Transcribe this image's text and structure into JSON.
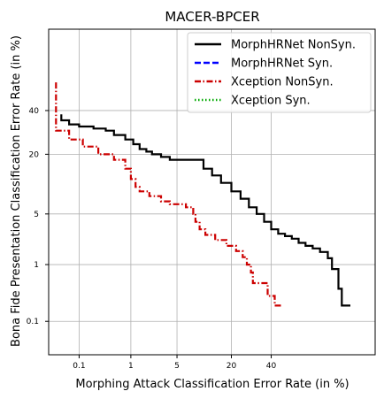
{
  "chart_data": {
    "type": "line",
    "title": "MACER-BPCER",
    "xlabel": "Morphing Attack Classification Error Rate (in %)",
    "ylabel": "Bona Fide Presentation Classification Error Rate (in %)",
    "scale": "probit",
    "xlim": [
      0.02,
      90
    ],
    "ylim": [
      0.02,
      80
    ],
    "xticks": [
      0.1,
      1,
      5,
      20,
      40
    ],
    "xtick_labels": [
      "0.1",
      "1",
      "5",
      "20",
      "40"
    ],
    "yticks": [
      0.1,
      1,
      5,
      20,
      40
    ],
    "ytick_labels": [
      "0.1",
      "1",
      "5",
      "20",
      "40"
    ],
    "grid": true,
    "legend_position": "top-right",
    "series": [
      {
        "name": "MorphHRNet NonSyn.",
        "color": "#000000",
        "style": "solid",
        "points": [
          [
            0.04,
            38
          ],
          [
            0.04,
            35
          ],
          [
            0.06,
            35
          ],
          [
            0.06,
            33
          ],
          [
            0.1,
            33
          ],
          [
            0.1,
            32
          ],
          [
            0.2,
            32
          ],
          [
            0.2,
            31
          ],
          [
            0.35,
            31
          ],
          [
            0.35,
            30
          ],
          [
            0.5,
            30
          ],
          [
            0.5,
            28
          ],
          [
            0.8,
            28
          ],
          [
            0.8,
            26
          ],
          [
            1.1,
            26
          ],
          [
            1.1,
            24
          ],
          [
            1.4,
            24
          ],
          [
            1.4,
            22
          ],
          [
            1.8,
            22
          ],
          [
            1.8,
            21
          ],
          [
            2.2,
            21
          ],
          [
            2.2,
            20
          ],
          [
            3.0,
            20
          ],
          [
            3.0,
            19
          ],
          [
            4.0,
            19
          ],
          [
            4.0,
            18
          ],
          [
            10.5,
            18
          ],
          [
            10.5,
            15
          ],
          [
            13,
            15
          ],
          [
            13,
            13
          ],
          [
            16,
            13
          ],
          [
            16,
            11
          ],
          [
            20,
            11
          ],
          [
            20,
            9
          ],
          [
            24,
            9
          ],
          [
            24,
            7.5
          ],
          [
            28,
            7.5
          ],
          [
            28,
            6
          ],
          [
            32,
            6
          ],
          [
            32,
            5
          ],
          [
            36,
            5
          ],
          [
            36,
            4
          ],
          [
            40,
            4
          ],
          [
            40,
            3.2
          ],
          [
            44,
            3.2
          ],
          [
            44,
            2.8
          ],
          [
            48,
            2.8
          ],
          [
            48,
            2.6
          ],
          [
            52,
            2.6
          ],
          [
            52,
            2.4
          ],
          [
            56,
            2.4
          ],
          [
            56,
            2.1
          ],
          [
            60,
            2.1
          ],
          [
            60,
            1.9
          ],
          [
            64,
            1.9
          ],
          [
            64,
            1.75
          ],
          [
            68,
            1.75
          ],
          [
            68,
            1.55
          ],
          [
            72,
            1.55
          ],
          [
            72,
            1.25
          ],
          [
            74,
            1.25
          ],
          [
            74,
            0.85
          ],
          [
            77,
            0.85
          ],
          [
            77,
            0.4
          ],
          [
            78.5,
            0.4
          ],
          [
            78.5,
            0.2
          ],
          [
            82,
            0.2
          ]
        ]
      },
      {
        "name": "MorphHRNet Syn.",
        "color": "#0000ff",
        "style": "dashed",
        "points": []
      },
      {
        "name": "Xception NonSyn.",
        "color": "#cc0000",
        "style": "dashdot",
        "points": [
          [
            0.03,
            55
          ],
          [
            0.03,
            30
          ],
          [
            0.06,
            30
          ],
          [
            0.06,
            26
          ],
          [
            0.12,
            26
          ],
          [
            0.12,
            23
          ],
          [
            0.25,
            23
          ],
          [
            0.25,
            20
          ],
          [
            0.5,
            20
          ],
          [
            0.5,
            18
          ],
          [
            0.8,
            18
          ],
          [
            0.8,
            15
          ],
          [
            1.0,
            15
          ],
          [
            1.0,
            12
          ],
          [
            1.2,
            12
          ],
          [
            1.2,
            10
          ],
          [
            1.4,
            10
          ],
          [
            1.4,
            9
          ],
          [
            2.0,
            9
          ],
          [
            2.0,
            8
          ],
          [
            3.0,
            8
          ],
          [
            3.0,
            7
          ],
          [
            4.0,
            7
          ],
          [
            4.0,
            6.5
          ],
          [
            6.5,
            6.5
          ],
          [
            6.5,
            6
          ],
          [
            8.0,
            6
          ],
          [
            8.0,
            5
          ],
          [
            8.5,
            5
          ],
          [
            8.5,
            4
          ],
          [
            9.5,
            4
          ],
          [
            9.5,
            3.2
          ],
          [
            11,
            3.2
          ],
          [
            11,
            2.7
          ],
          [
            14,
            2.7
          ],
          [
            14,
            2.3
          ],
          [
            18,
            2.3
          ],
          [
            18,
            1.9
          ],
          [
            22,
            1.9
          ],
          [
            22,
            1.6
          ],
          [
            25,
            1.6
          ],
          [
            25,
            1.3
          ],
          [
            27,
            1.3
          ],
          [
            27,
            1.0
          ],
          [
            29,
            1.0
          ],
          [
            29,
            0.75
          ],
          [
            30,
            0.75
          ],
          [
            30,
            0.5
          ],
          [
            38,
            0.5
          ],
          [
            38,
            0.3
          ],
          [
            42,
            0.3
          ],
          [
            42,
            0.2
          ],
          [
            46,
            0.2
          ]
        ]
      },
      {
        "name": "Xception Syn.",
        "color": "#00aa00",
        "style": "dotted",
        "points": []
      }
    ]
  }
}
